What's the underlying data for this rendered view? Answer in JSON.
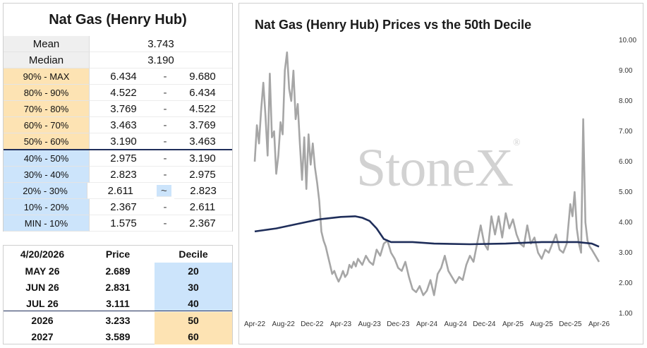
{
  "decile_table": {
    "title": "Nat Gas (Henry Hub)",
    "mean_label": "Mean",
    "mean_value": "3.743",
    "median_label": "Median",
    "median_value": "3.190",
    "rows": [
      {
        "label": "90% - MAX",
        "low": "6.434",
        "sep": "-",
        "high": "9.680"
      },
      {
        "label": "80% - 90%",
        "low": "4.522",
        "sep": "-",
        "high": "6.434"
      },
      {
        "label": "70% - 80%",
        "low": "3.769",
        "sep": "-",
        "high": "4.522"
      },
      {
        "label": "60% - 70%",
        "low": "3.463",
        "sep": "-",
        "high": "3.769"
      },
      {
        "label": "50% - 60%",
        "low": "3.190",
        "sep": "-",
        "high": "3.463"
      },
      {
        "label": "40% - 50%",
        "low": "2.975",
        "sep": "-",
        "high": "3.190"
      },
      {
        "label": "30% - 40%",
        "low": "2.823",
        "sep": "-",
        "high": "2.975"
      },
      {
        "label": "20% - 30%",
        "low": "2.611",
        "sep": "~",
        "high": "2.823"
      },
      {
        "label": "10% - 20%",
        "low": "2.367",
        "sep": "-",
        "high": "2.611"
      },
      {
        "label": "MIN - 10%",
        "low": "1.575",
        "sep": "-",
        "high": "2.367"
      }
    ]
  },
  "price_table": {
    "headers": {
      "contract": "4/20/2026",
      "price": "Price",
      "decile": "Decile"
    },
    "rows": [
      {
        "contract": "MAY 26",
        "price": "2.689",
        "decile": "20"
      },
      {
        "contract": "JUN 26",
        "price": "2.831",
        "decile": "30"
      },
      {
        "contract": "JUL 26",
        "price": "3.111",
        "decile": "40"
      },
      {
        "contract": "2026",
        "price": "3.233",
        "decile": "50"
      },
      {
        "contract": "2027",
        "price": "3.589",
        "decile": "60"
      }
    ]
  },
  "watermark": {
    "text": "StoneX",
    "mark": "®"
  },
  "colors": {
    "price_line": "#a6a6a6",
    "decile_line": "#1f2e5a",
    "orange_band": "#fde3b3",
    "blue_band": "#cce4fb"
  },
  "chart_data": {
    "type": "line",
    "title": "Nat Gas (Henry Hub) Prices vs the 50th Decile",
    "xlabel": "",
    "ylabel": "",
    "ylim": [
      1.0,
      10.0
    ],
    "y_ticks": [
      "10.00",
      "9.00",
      "8.00",
      "7.00",
      "6.00",
      "5.00",
      "4.00",
      "3.00",
      "2.00",
      "1.00"
    ],
    "x_ticks": [
      "Apr-22",
      "Aug-22",
      "Dec-22",
      "Apr-23",
      "Aug-23",
      "Dec-23",
      "Apr-24",
      "Aug-24",
      "Dec-24",
      "Apr-25",
      "Aug-25",
      "Dec-25",
      "Apr-26"
    ],
    "grid": false,
    "legend": "none",
    "series": [
      {
        "name": "",
        "x": [
          0,
          0.3,
          0.6,
          0.9,
          1.2,
          1.5,
          1.8,
          2.1,
          2.4,
          2.7,
          3.0,
          3.3,
          3.6,
          3.9,
          4.2,
          4.5,
          4.8,
          5.1,
          5.4,
          5.7,
          6.0,
          6.3,
          6.6,
          6.9,
          7.2,
          7.5,
          7.8,
          8.1,
          8.4,
          8.7,
          9.0,
          9.3,
          9.6,
          9.9,
          10.2,
          10.5,
          10.8,
          11.1,
          11.4,
          11.7,
          12.0,
          12.3,
          12.6,
          12.9,
          13.2,
          13.5,
          13.8,
          14.1,
          14.4,
          14.7,
          15.0,
          15.5,
          16.0,
          16.5,
          17.0,
          17.5,
          18.0,
          18.5,
          19.0,
          19.5,
          20.0,
          20.5,
          21.0,
          21.5,
          22.0,
          22.5,
          23.0,
          23.5,
          24.0,
          24.5,
          25.0,
          25.5,
          26.0,
          26.5,
          27.0,
          27.5,
          28.0,
          28.5,
          29.0,
          29.5,
          30.0,
          30.5,
          31.0,
          31.5,
          32.0,
          32.5,
          33.0,
          33.5,
          34.0,
          34.5,
          35.0,
          35.5,
          36.0,
          36.5,
          37.0,
          37.5,
          38.0,
          38.5,
          39.0,
          39.5,
          40.0,
          40.5,
          41.0,
          41.5,
          42.0,
          42.5,
          43.0,
          43.5,
          44.0,
          44.3,
          44.6,
          44.9,
          45.2,
          45.5,
          45.8,
          46.1,
          46.4,
          46.7,
          47.0,
          47.5,
          48.0
        ],
        "values": [
          6.0,
          7.2,
          6.6,
          7.7,
          8.6,
          7.5,
          6.2,
          8.9,
          6.8,
          7.0,
          5.6,
          6.2,
          7.3,
          6.9,
          9.0,
          9.6,
          8.4,
          8.0,
          9.0,
          7.4,
          7.9,
          6.6,
          5.4,
          6.8,
          5.1,
          6.9,
          5.9,
          6.6,
          5.8,
          5.3,
          4.7,
          3.7,
          3.4,
          3.2,
          2.9,
          2.6,
          2.3,
          2.4,
          2.2,
          2.05,
          2.2,
          2.4,
          2.2,
          2.3,
          2.6,
          2.5,
          2.7,
          2.55,
          2.8,
          2.7,
          2.6,
          2.9,
          2.7,
          2.6,
          3.1,
          2.9,
          3.3,
          3.4,
          3.0,
          2.8,
          2.5,
          2.4,
          2.7,
          2.2,
          1.8,
          1.7,
          1.9,
          1.6,
          1.75,
          2.1,
          1.6,
          2.3,
          2.5,
          2.9,
          2.4,
          2.2,
          2.0,
          2.2,
          2.1,
          2.6,
          2.9,
          2.7,
          3.3,
          3.9,
          3.3,
          3.1,
          4.2,
          3.6,
          4.2,
          3.5,
          4.3,
          3.8,
          4.1,
          3.6,
          3.3,
          3.2,
          3.9,
          3.3,
          3.5,
          3.0,
          2.8,
          3.1,
          3.0,
          3.3,
          3.6,
          3.1,
          3.0,
          3.3,
          4.6,
          4.2,
          5.0,
          3.8,
          3.3,
          3.0,
          7.4,
          4.0,
          3.4,
          3.2,
          3.1,
          2.9,
          2.7
        ]
      },
      {
        "name": "",
        "x": [
          0,
          3,
          6,
          9,
          12,
          14,
          15,
          16,
          17,
          18,
          19,
          20,
          22,
          25,
          30,
          35,
          40,
          43,
          45,
          47,
          48
        ],
        "values": [
          3.7,
          3.8,
          3.95,
          4.1,
          4.18,
          4.2,
          4.15,
          4.05,
          3.8,
          3.45,
          3.35,
          3.35,
          3.35,
          3.3,
          3.28,
          3.3,
          3.35,
          3.35,
          3.35,
          3.3,
          3.2
        ]
      }
    ]
  }
}
